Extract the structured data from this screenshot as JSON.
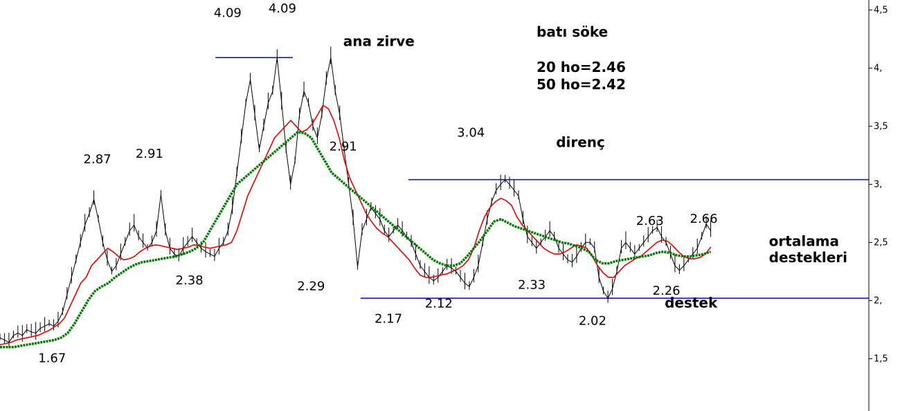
{
  "chart_data": {
    "type": "line",
    "title": "batı söke",
    "subtitle_lines": [
      "20 ho=2.46",
      "50 ho=2.42"
    ],
    "ylim": [
      1.05,
      4.55
    ],
    "y_ticks": [
      "4,5",
      "4,",
      "3,5",
      "3,",
      "2,5",
      "2,",
      "1,5"
    ],
    "y_tick_values": [
      4.5,
      4.0,
      3.5,
      3.0,
      2.5,
      2.0,
      1.5
    ],
    "grid": false,
    "legend": "none",
    "series": [
      {
        "role": "price",
        "color": "#000000",
        "values": [
          1.68,
          1.66,
          1.64,
          1.7,
          1.72,
          1.7,
          1.75,
          1.73,
          1.72,
          1.76,
          1.78,
          1.8,
          1.78,
          1.82,
          1.9,
          2.05,
          2.2,
          2.35,
          2.5,
          2.65,
          2.75,
          2.87,
          2.7,
          2.5,
          2.35,
          2.25,
          2.3,
          2.4,
          2.5,
          2.6,
          2.65,
          2.55,
          2.5,
          2.45,
          2.5,
          2.6,
          2.91,
          2.6,
          2.45,
          2.4,
          2.38,
          2.45,
          2.5,
          2.55,
          2.5,
          2.45,
          2.42,
          2.4,
          2.38,
          2.45,
          2.5,
          2.6,
          2.8,
          3.1,
          3.4,
          3.7,
          3.9,
          3.6,
          3.3,
          3.5,
          3.7,
          3.8,
          4.09,
          3.7,
          3.3,
          3.0,
          3.2,
          3.6,
          3.8,
          3.7,
          3.5,
          3.4,
          3.6,
          3.9,
          4.09,
          3.8,
          3.6,
          3.3,
          3.0,
          2.7,
          2.29,
          2.6,
          2.7,
          2.8,
          2.75,
          2.7,
          2.6,
          2.55,
          2.6,
          2.65,
          2.6,
          2.55,
          2.5,
          2.4,
          2.3,
          2.25,
          2.2,
          2.17,
          2.2,
          2.25,
          2.3,
          2.28,
          2.25,
          2.2,
          2.15,
          2.12,
          2.2,
          2.3,
          2.5,
          2.7,
          2.85,
          2.95,
          3.0,
          3.04,
          3.0,
          2.95,
          2.9,
          2.7,
          2.55,
          2.5,
          2.45,
          2.5,
          2.55,
          2.6,
          2.55,
          2.45,
          2.4,
          2.35,
          2.33,
          2.38,
          2.45,
          2.5,
          2.5,
          2.45,
          2.2,
          2.08,
          2.02,
          2.1,
          2.25,
          2.45,
          2.5,
          2.45,
          2.4,
          2.45,
          2.5,
          2.55,
          2.6,
          2.63,
          2.55,
          2.5,
          2.4,
          2.3,
          2.26,
          2.3,
          2.35,
          2.4,
          2.45,
          2.55,
          2.66,
          2.6
        ]
      },
      {
        "role": "20-period moving average",
        "color": "#e00000",
        "values": [
          1.62,
          1.63,
          1.64,
          1.66,
          1.67,
          1.68,
          1.69,
          1.7,
          1.72,
          1.74,
          1.77,
          1.8,
          1.85,
          1.95,
          2.05,
          2.15,
          2.2,
          2.3,
          2.35,
          2.4,
          2.45,
          2.42,
          2.38,
          2.35,
          2.36,
          2.38,
          2.42,
          2.45,
          2.47,
          2.48,
          2.47,
          2.46,
          2.45,
          2.44,
          2.45,
          2.46,
          2.48,
          2.47,
          2.46,
          2.45,
          2.46,
          2.47,
          2.48,
          2.5,
          2.6,
          2.75,
          2.9,
          3.0,
          3.1,
          3.2,
          3.3,
          3.4,
          3.45,
          3.5,
          3.55,
          3.5,
          3.45,
          3.47,
          3.52,
          3.6,
          3.68,
          3.65,
          3.55,
          3.4,
          3.2,
          3.05,
          2.95,
          2.85,
          2.75,
          2.68,
          2.62,
          2.58,
          2.55,
          2.5,
          2.45,
          2.4,
          2.35,
          2.28,
          2.22,
          2.2,
          2.2,
          2.21,
          2.22,
          2.23,
          2.25,
          2.27,
          2.3,
          2.35,
          2.45,
          2.6,
          2.72,
          2.8,
          2.85,
          2.88,
          2.86,
          2.82,
          2.72,
          2.65,
          2.6,
          2.55,
          2.5,
          2.45,
          2.42,
          2.4,
          2.4,
          2.42,
          2.45,
          2.48,
          2.47,
          2.45,
          2.38,
          2.3,
          2.24,
          2.2,
          2.2,
          2.25,
          2.3,
          2.33,
          2.36,
          2.38,
          2.42,
          2.46,
          2.5,
          2.52,
          2.51,
          2.47,
          2.42,
          2.38,
          2.36,
          2.36,
          2.37,
          2.4,
          2.46
        ]
      },
      {
        "role": "50-period moving average",
        "color": "#007700",
        "values": [
          1.6,
          1.6,
          1.6,
          1.61,
          1.62,
          1.63,
          1.64,
          1.65,
          1.66,
          1.68,
          1.72,
          1.8,
          1.9,
          2.0,
          2.08,
          2.12,
          2.15,
          2.2,
          2.24,
          2.28,
          2.31,
          2.33,
          2.34,
          2.35,
          2.36,
          2.37,
          2.38,
          2.4,
          2.42,
          2.45,
          2.5,
          2.6,
          2.7,
          2.8,
          2.9,
          3.0,
          3.05,
          3.1,
          3.15,
          3.2,
          3.25,
          3.3,
          3.35,
          3.4,
          3.45,
          3.44,
          3.4,
          3.3,
          3.2,
          3.1,
          3.05,
          3.0,
          2.95,
          2.9,
          2.85,
          2.8,
          2.75,
          2.7,
          2.65,
          2.6,
          2.55,
          2.5,
          2.45,
          2.4,
          2.35,
          2.32,
          2.3,
          2.3,
          2.32,
          2.38,
          2.45,
          2.52,
          2.6,
          2.68,
          2.7,
          2.67,
          2.64,
          2.62,
          2.6,
          2.58,
          2.56,
          2.54,
          2.52,
          2.5,
          2.49,
          2.47,
          2.45,
          2.42,
          2.35,
          2.32,
          2.32,
          2.34,
          2.35,
          2.36,
          2.37,
          2.38,
          2.39,
          2.41,
          2.42,
          2.41,
          2.39,
          2.38,
          2.38,
          2.39,
          2.4,
          2.42
        ]
      }
    ],
    "annotations": [
      {
        "text": "4.09",
        "x": 0.262,
        "y": 4.44
      },
      {
        "text": "4.09",
        "x": 0.325,
        "y": 4.48
      },
      {
        "text": "2.87",
        "x": 0.112,
        "y": 3.18
      },
      {
        "text": "2.91",
        "x": 0.172,
        "y": 3.23
      },
      {
        "text": "2.91",
        "x": 0.395,
        "y": 3.29
      },
      {
        "text": "3.04",
        "x": 0.542,
        "y": 3.41
      },
      {
        "text": "2.63",
        "x": 0.748,
        "y": 2.65
      },
      {
        "text": "2.66",
        "x": 0.81,
        "y": 2.67
      },
      {
        "text": "2.38",
        "x": 0.218,
        "y": 2.14
      },
      {
        "text": "2.29",
        "x": 0.358,
        "y": 2.09
      },
      {
        "text": "2.33",
        "x": 0.612,
        "y": 2.1
      },
      {
        "text": "2.26",
        "x": 0.767,
        "y": 2.05
      },
      {
        "text": "2.12",
        "x": 0.505,
        "y": 1.94
      },
      {
        "text": "2.17",
        "x": 0.447,
        "y": 1.81
      },
      {
        "text": "2.02",
        "x": 0.682,
        "y": 1.79
      },
      {
        "text": "1.67",
        "x": 0.06,
        "y": 1.47
      }
    ],
    "text_labels": [
      {
        "text": "ana zirve",
        "x": 0.395,
        "y": 4.19
      },
      {
        "text": "direnç",
        "x": 0.64,
        "y": 3.32
      },
      {
        "text": "destek",
        "x": 0.765,
        "y": 1.94
      },
      {
        "text": "ortalama",
        "x": 0.885,
        "y": 2.47
      },
      {
        "text": "destekleri",
        "x": 0.885,
        "y": 2.33
      }
    ],
    "reference_lines": [
      {
        "label": "ana zirve",
        "y": 4.09,
        "x_from": 0.248,
        "x_to": 0.337
      },
      {
        "label": "direnç",
        "y": 3.04,
        "x_from": 0.47,
        "x_to": 1.0
      },
      {
        "label": "destek",
        "y": 2.02,
        "x_from": 0.415,
        "x_to": 1.0
      }
    ]
  }
}
